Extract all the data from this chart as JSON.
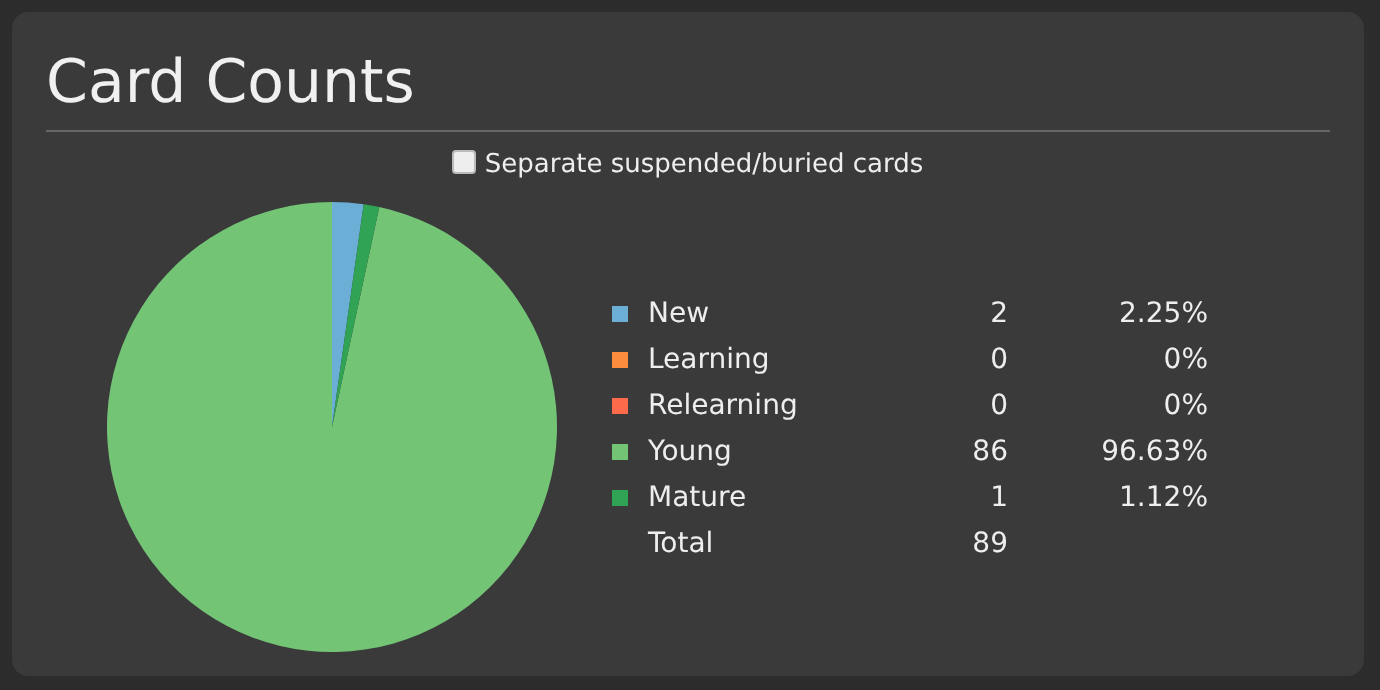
{
  "chart_data": {
    "type": "pie",
    "title": "Card Counts",
    "categories": [
      "New",
      "Learning",
      "Relearning",
      "Young",
      "Mature"
    ],
    "values": [
      2.25,
      0,
      0,
      96.63,
      1.12
    ],
    "colors": [
      "#6baed6",
      "#fd8d3c",
      "#fb6a4a",
      "#74c476",
      "#31a354"
    ],
    "value_labels": [
      "2.25%",
      "0%",
      "0%",
      "96.63%",
      "1.12%"
    ],
    "legend": "right",
    "totals": [
      "89"
    ],
    "annotations": [
      "Separate suspended/buried cards",
      "Total",
      "2",
      "0",
      "0",
      "86",
      "1"
    ]
  }
}
